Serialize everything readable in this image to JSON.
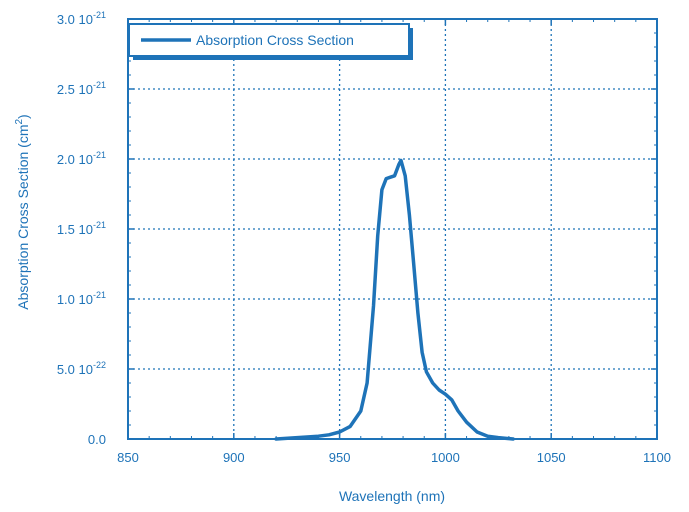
{
  "chart_data": {
    "type": "line",
    "title": "",
    "xlabel": "Wavelength (nm)",
    "ylabel": {
      "text": "Absorption Cross Section (cm",
      "sup": "2",
      "tail": ")"
    },
    "xlim": [
      850,
      1100
    ],
    "ylim": [
      0,
      3e-21
    ],
    "grid": true,
    "legend_position": "top-left",
    "colors": {
      "axis": "#1e73b8",
      "series": "#1e73b8",
      "grid": "#1e73b8"
    },
    "x_ticks": [
      {
        "value": 850,
        "label": "850"
      },
      {
        "value": 900,
        "label": "900"
      },
      {
        "value": 950,
        "label": "950"
      },
      {
        "value": 1000,
        "label": "1000"
      },
      {
        "value": 1050,
        "label": "1050"
      },
      {
        "value": 1100,
        "label": "1100"
      }
    ],
    "y_ticks": [
      {
        "value": 0,
        "mantissa": "0.0",
        "exponent": ""
      },
      {
        "value": 5e-22,
        "mantissa": "5.0 10",
        "exponent": "-22"
      },
      {
        "value": 1e-21,
        "mantissa": "1.0 10",
        "exponent": "-21"
      },
      {
        "value": 1.5e-21,
        "mantissa": "1.5 10",
        "exponent": "-21"
      },
      {
        "value": 2e-21,
        "mantissa": "2.0 10",
        "exponent": "-21"
      },
      {
        "value": 2.5e-21,
        "mantissa": "2.5 10",
        "exponent": "-21"
      },
      {
        "value": 3e-21,
        "mantissa": "3.0 10",
        "exponent": "-21"
      }
    ],
    "series": [
      {
        "name": "Absorption Cross Section",
        "x": [
          920,
          930,
          940,
          945,
          950,
          955,
          960,
          963,
          966,
          968,
          970,
          972,
          974,
          976,
          978,
          979,
          981,
          983,
          985,
          987,
          989,
          991,
          994,
          997,
          1000,
          1003,
          1006,
          1010,
          1015,
          1020,
          1025,
          1032
        ],
        "y": [
          0,
          1e-23,
          2e-23,
          3e-23,
          5e-23,
          9e-23,
          2e-22,
          4e-22,
          9.5e-22,
          1.45e-21,
          1.78e-21,
          1.86e-21,
          1.87e-21,
          1.88e-21,
          1.96e-21,
          1.99e-21,
          1.88e-21,
          1.6e-21,
          1.25e-21,
          9e-22,
          6.2e-22,
          4.8e-22,
          4e-22,
          3.5e-22,
          3.2e-22,
          2.8e-22,
          2e-22,
          1.2e-22,
          5e-23,
          2e-23,
          1e-23,
          0
        ]
      }
    ]
  }
}
